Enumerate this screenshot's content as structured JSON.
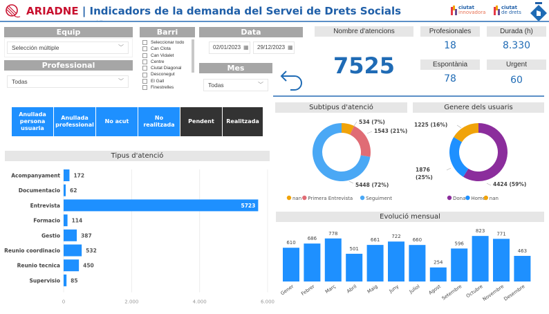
{
  "header": {
    "brand": "ARIADNE",
    "separator": " | ",
    "title": "Indicadors de la demanda del Servei de Drets Socials",
    "logos": [
      {
        "word1": "ciutat",
        "word2": "innovadora"
      },
      {
        "word1": "ciutat",
        "word2": "de drets"
      }
    ]
  },
  "filters": {
    "equip": {
      "label": "Equip",
      "value": "Selección múltiple"
    },
    "professional": {
      "label": "Professional",
      "value": "Todas"
    },
    "barri": {
      "label": "Barri",
      "items": [
        "Seleccionar todo",
        "Can Clota",
        "Can Vidalet",
        "Centre",
        "Ciutat Diagonal",
        "Desconegut",
        "El Gall",
        "Finestrelles"
      ]
    },
    "data": {
      "label": "Data",
      "from": "02/01/2023",
      "to": "29/12/2023"
    },
    "mes": {
      "label": "Mes",
      "value": "Todas"
    }
  },
  "kpis": {
    "atencions": {
      "label": "Nombre d'atencions",
      "value": "7525"
    },
    "professionals": {
      "label": "Profesionales",
      "value": "18"
    },
    "durada": {
      "label": "Durada (h)",
      "value": "8.330"
    },
    "espontania": {
      "label": "Espontània",
      "value": "78"
    },
    "urgent": {
      "label": "Urgent",
      "value": "60"
    }
  },
  "status_buttons": [
    {
      "label": "Anullada persona usuaria",
      "style": "blue"
    },
    {
      "label": "Anullada professional",
      "style": "blue"
    },
    {
      "label": "No acut",
      "style": "blue"
    },
    {
      "label": "No realitzada",
      "style": "blue"
    },
    {
      "label": "Pendent",
      "style": "dark"
    },
    {
      "label": "Realitzada",
      "style": "dark"
    }
  ],
  "colors": {
    "blue": "#1e90ff",
    "kpi_blue": "#1f6bb5",
    "brand_red": "#c8102e",
    "orange": "#f0a30a",
    "pink": "#e06c75",
    "light_blue": "#4aa8f5",
    "purple": "#8b2d9c"
  },
  "chart_data": [
    {
      "type": "bar",
      "orientation": "horizontal",
      "title": "Tipus d'atenció",
      "categories": [
        "Acompanyament",
        "Documentacio",
        "Entrevista",
        "Formacio",
        "Gestio",
        "Reunio coordinacio",
        "Reunio tecnica",
        "Supervisio"
      ],
      "values": [
        172,
        62,
        5723,
        114,
        387,
        532,
        450,
        85
      ],
      "xlim": [
        0,
        6000
      ],
      "xticks": [
        "0",
        "2.000",
        "4.000",
        "6.000"
      ],
      "grid": true
    },
    {
      "type": "pie",
      "donut": true,
      "title": "Subtipus d'atenció",
      "labels": [
        "nan",
        "Primera Entrevista",
        "Seguiment"
      ],
      "values": [
        534,
        1543,
        5448
      ],
      "percent_labels": [
        "534 (7%)",
        "1543 (21%)",
        "5448 (72%)"
      ],
      "colors": [
        "#f0a30a",
        "#e06c75",
        "#4aa8f5"
      ],
      "legend": "bottom"
    },
    {
      "type": "pie",
      "donut": true,
      "title": "Genere dels usuaris",
      "labels": [
        "Dona",
        "Home",
        "nan"
      ],
      "values": [
        4424,
        1876,
        1225
      ],
      "percent_labels": [
        "4424 (59%)",
        "1876 (25%)",
        "1225 (16%)"
      ],
      "colors": [
        "#8b2d9c",
        "#1e90ff",
        "#f0a30a"
      ],
      "legend": "bottom"
    },
    {
      "type": "bar",
      "title": "Evolució mensual",
      "categories": [
        "Gener",
        "Febrer",
        "Març",
        "Abril",
        "Maig",
        "Juny",
        "Juliol",
        "Agost",
        "Setembre",
        "Octubre",
        "Novembre",
        "Desembre"
      ],
      "values": [
        610,
        686,
        778,
        501,
        661,
        722,
        660,
        254,
        596,
        823,
        771,
        463
      ],
      "ylim": [
        0,
        850
      ]
    }
  ]
}
